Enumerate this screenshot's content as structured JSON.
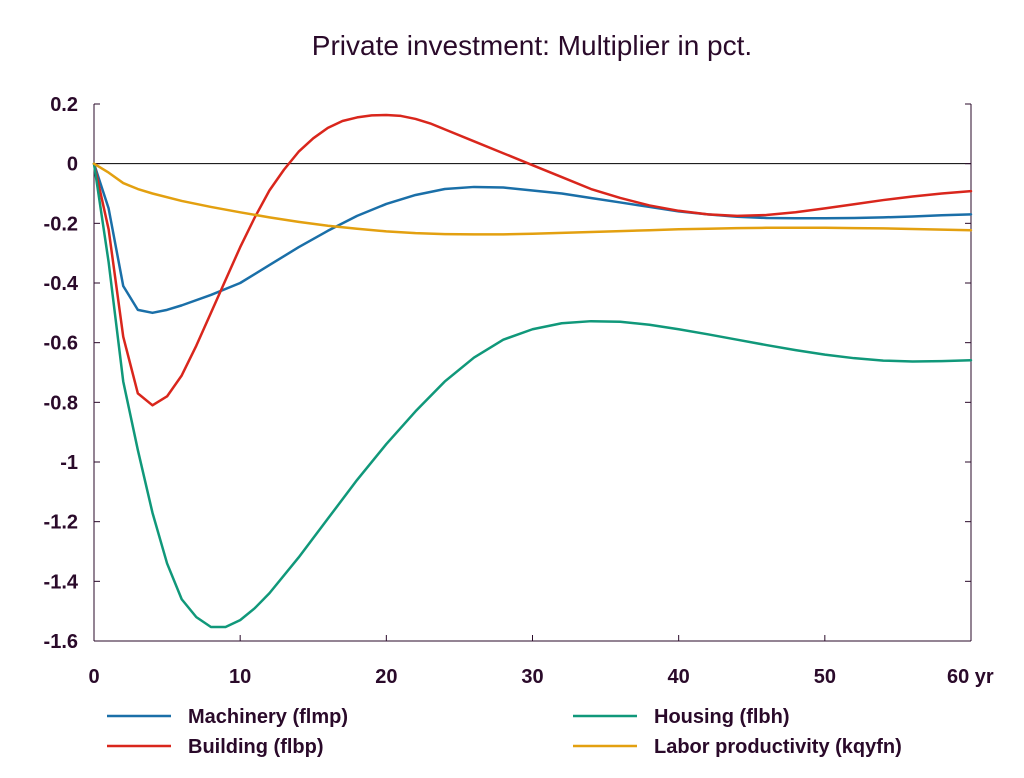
{
  "chart_data": {
    "type": "line",
    "title": "Private investment: Multiplier in pct.",
    "xlabel": "",
    "ylabel": "",
    "x_unit_label": "yr",
    "xlim": [
      0,
      60
    ],
    "ylim": [
      -1.6,
      0.2
    ],
    "x_ticks": [
      0,
      10,
      20,
      30,
      40,
      50,
      60
    ],
    "x_tick_labels": [
      "0",
      "10",
      "20",
      "30",
      "40",
      "50",
      "60 yr"
    ],
    "y_ticks": [
      0.2,
      0,
      -0.2,
      -0.4,
      -0.6,
      -0.8,
      -1,
      -1.2,
      -1.4,
      -1.6
    ],
    "y_tick_labels": [
      "0.2",
      "0",
      "-0.2",
      "-0.4",
      "-0.6",
      "-0.8",
      "-1",
      "-1.2",
      "-1.4",
      "-1.6"
    ],
    "zero_line": true,
    "grid": false,
    "legend_position": "bottom",
    "series": [
      {
        "name": "Machinery (flmp)",
        "color": "#1a6fa8",
        "x": [
          0,
          1,
          2,
          3,
          4,
          5,
          6,
          8,
          10,
          12,
          14,
          16,
          18,
          20,
          22,
          24,
          26,
          28,
          30,
          32,
          34,
          36,
          38,
          40,
          42,
          44,
          46,
          48,
          50,
          52,
          54,
          56,
          58,
          60
        ],
        "y": [
          0,
          -0.15,
          -0.41,
          -0.49,
          -0.5,
          -0.49,
          -0.475,
          -0.44,
          -0.4,
          -0.34,
          -0.28,
          -0.225,
          -0.175,
          -0.135,
          -0.105,
          -0.085,
          -0.078,
          -0.08,
          -0.09,
          -0.1,
          -0.115,
          -0.13,
          -0.145,
          -0.16,
          -0.17,
          -0.178,
          -0.182,
          -0.183,
          -0.183,
          -0.182,
          -0.18,
          -0.177,
          -0.173,
          -0.17
        ]
      },
      {
        "name": "Building (flbp)",
        "color": "#d9261c",
        "x": [
          0,
          1,
          2,
          3,
          4,
          5,
          6,
          7,
          8,
          9,
          10,
          11,
          12,
          13,
          14,
          15,
          16,
          17,
          18,
          19,
          20,
          21,
          22,
          23,
          24,
          26,
          28,
          30,
          32,
          34,
          36,
          38,
          40,
          42,
          44,
          46,
          48,
          50,
          52,
          54,
          56,
          58,
          60
        ],
        "y": [
          0,
          -0.22,
          -0.58,
          -0.77,
          -0.81,
          -0.78,
          -0.71,
          -0.61,
          -0.5,
          -0.39,
          -0.28,
          -0.18,
          -0.09,
          -0.02,
          0.04,
          0.085,
          0.12,
          0.143,
          0.155,
          0.162,
          0.163,
          0.16,
          0.15,
          0.135,
          0.115,
          0.075,
          0.035,
          -0.005,
          -0.045,
          -0.085,
          -0.115,
          -0.14,
          -0.158,
          -0.17,
          -0.175,
          -0.172,
          -0.163,
          -0.15,
          -0.136,
          -0.122,
          -0.11,
          -0.1,
          -0.092
        ]
      },
      {
        "name": "Housing (flbh)",
        "color": "#10987a",
        "x": [
          0,
          1,
          2,
          3,
          4,
          5,
          6,
          7,
          8,
          9,
          10,
          11,
          12,
          14,
          16,
          18,
          20,
          22,
          24,
          26,
          28,
          30,
          32,
          34,
          36,
          38,
          40,
          42,
          44,
          46,
          48,
          50,
          52,
          54,
          56,
          58,
          60
        ],
        "y": [
          0,
          -0.33,
          -0.73,
          -0.96,
          -1.17,
          -1.34,
          -1.46,
          -1.52,
          -1.553,
          -1.553,
          -1.53,
          -1.49,
          -1.44,
          -1.32,
          -1.19,
          -1.06,
          -0.94,
          -0.83,
          -0.73,
          -0.65,
          -0.59,
          -0.555,
          -0.535,
          -0.528,
          -0.53,
          -0.54,
          -0.555,
          -0.572,
          -0.59,
          -0.608,
          -0.625,
          -0.64,
          -0.652,
          -0.66,
          -0.663,
          -0.662,
          -0.659
        ]
      },
      {
        "name": "Labor productivity (kqyfn)",
        "color": "#e3a010",
        "x": [
          0,
          1,
          2,
          3,
          4,
          6,
          8,
          10,
          12,
          14,
          16,
          18,
          20,
          22,
          24,
          26,
          28,
          30,
          32,
          34,
          36,
          38,
          40,
          42,
          44,
          46,
          48,
          50,
          52,
          54,
          56,
          58,
          60
        ],
        "y": [
          0,
          -0.03,
          -0.065,
          -0.085,
          -0.1,
          -0.125,
          -0.145,
          -0.163,
          -0.18,
          -0.195,
          -0.208,
          -0.218,
          -0.227,
          -0.233,
          -0.236,
          -0.237,
          -0.237,
          -0.235,
          -0.232,
          -0.229,
          -0.226,
          -0.223,
          -0.22,
          -0.218,
          -0.216,
          -0.215,
          -0.215,
          -0.215,
          -0.216,
          -0.217,
          -0.219,
          -0.221,
          -0.223
        ]
      }
    ]
  }
}
